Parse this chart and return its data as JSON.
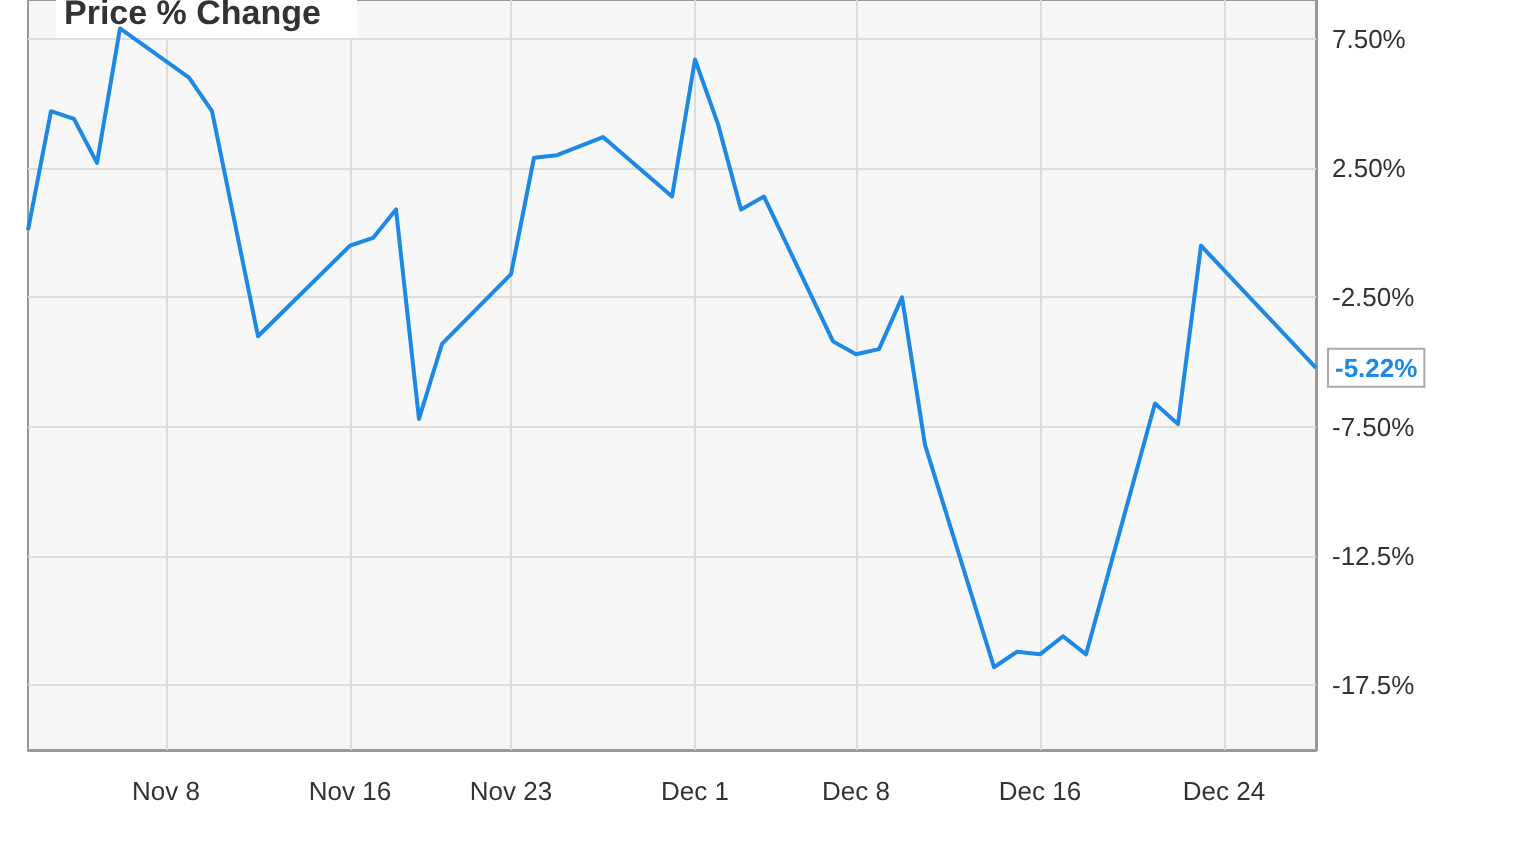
{
  "chart_data": {
    "type": "line",
    "title": "Price % Change",
    "x": [
      "--11-02",
      "--11-03",
      "--11-04",
      "--11-05",
      "--11-06",
      "--11-09",
      "--11-10",
      "--11-12",
      "--11-16",
      "--11-17",
      "--11-18",
      "--11-19",
      "--11-20",
      "--11-23",
      "--11-24",
      "--11-25",
      "--11-27",
      "--11-30",
      "--12-01",
      "--12-02",
      "--12-03",
      "--12-04",
      "--12-07",
      "--12-08",
      "--12-09",
      "--12-10",
      "--12-11",
      "--12-14",
      "--12-15",
      "--12-16",
      "--12-17",
      "--12-18",
      "--12-21",
      "--12-22",
      "--12-23",
      "--12-28"
    ],
    "series": [
      {
        "color": "#1e88e5",
        "values": [
          0.1,
          4.7,
          4.4,
          2.7,
          7.9,
          6.0,
          4.7,
          -4.0,
          -0.5,
          -0.2,
          0.9,
          -7.2,
          -4.3,
          -1.6,
          2.9,
          3.0,
          3.7,
          1.4,
          6.7,
          4.2,
          0.9,
          1.4,
          -4.2,
          -4.7,
          -4.5,
          -2.5,
          -8.2,
          -16.8,
          -16.2,
          -16.3,
          -15.6,
          -16.3,
          -6.6,
          -7.4,
          -0.5,
          -5.22
        ]
      }
    ],
    "xlim": [
      "--11-02",
      "--12-28"
    ],
    "xticks": [
      {
        "value": "--11-08",
        "label": "Nov 8"
      },
      {
        "value": "--11-16",
        "label": "Nov 16"
      },
      {
        "value": "--11-23",
        "label": "Nov 23"
      },
      {
        "value": "--12-01",
        "label": "Dec 1"
      },
      {
        "value": "--12-08",
        "label": "Dec 8"
      },
      {
        "value": "--12-16",
        "label": "Dec 16"
      },
      {
        "value": "--12-24",
        "label": "Dec 24"
      }
    ],
    "ylim": [
      -20,
      9
    ],
    "yticks": [
      {
        "value": 7.5,
        "label": "7.50%"
      },
      {
        "value": 2.5,
        "label": "2.50%"
      },
      {
        "value": -2.5,
        "label": "-2.50%"
      },
      {
        "value": -7.5,
        "label": "-7.50%"
      },
      {
        "value": -12.5,
        "label": "-12.5%"
      },
      {
        "value": -17.5,
        "label": "-17.5%"
      }
    ],
    "annotations": [
      {
        "text": "-5.22%",
        "x": "--12-28",
        "y": -5.22
      }
    ],
    "grid": true,
    "marker": "none",
    "line_style": "solid"
  }
}
